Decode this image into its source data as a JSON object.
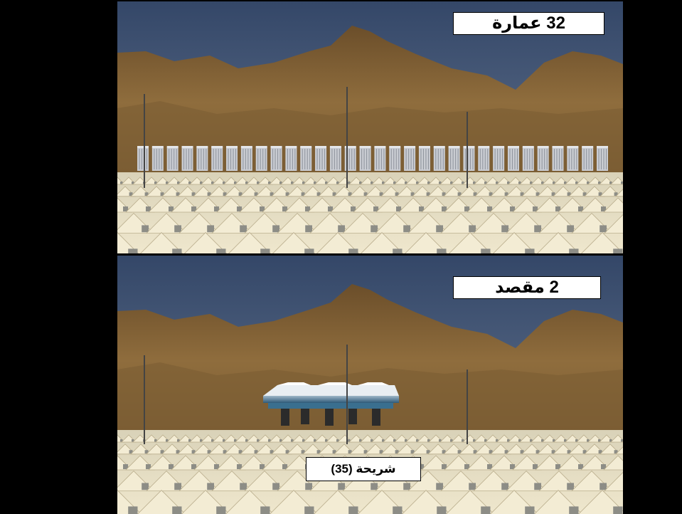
{
  "slide": {
    "top_panel": {
      "label": "32 عمارة",
      "building_count": 32
    },
    "bottom_panel": {
      "label": "2 مقصد",
      "caption": "شريحة (35)"
    }
  },
  "colors": {
    "background": "#000000",
    "sky": "#3f5170",
    "mountain": "#8a6a3a",
    "tent": "#efe6cc",
    "label_bg": "#ffffff"
  }
}
